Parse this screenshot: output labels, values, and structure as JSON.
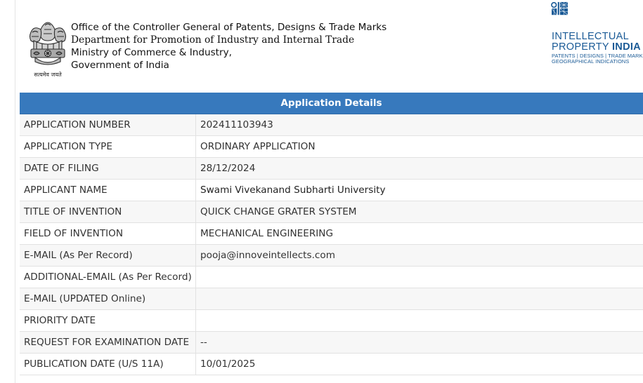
{
  "header": {
    "emblem_motto": "सत्यमेव जयते",
    "office_lines": [
      "Office of the Controller General of Patents, Designs & Trade Marks",
      "Department for Promotion of Industry and Internal Trade",
      "Ministry of Commerce & Industry,",
      "Government of India"
    ],
    "logo": {
      "line1": "INTELLECTUAL",
      "line2_plain": "PROPERTY ",
      "line2_bold": "INDIA",
      "line3": "PATENTS | DESIGNS | TRADE MARKS",
      "line4": "GEOGRAPHICAL INDICATIONS",
      "color": "#1a5a96"
    }
  },
  "table": {
    "title": "Application Details",
    "header_color": "#3779bd",
    "rows": [
      {
        "label": "APPLICATION NUMBER",
        "value": "202411103943"
      },
      {
        "label": "APPLICATION TYPE",
        "value": "ORDINARY APPLICATION"
      },
      {
        "label": "DATE OF FILING",
        "value": "28/12/2024"
      },
      {
        "label": "APPLICANT NAME",
        "value": "Swami Vivekanand Subharti University"
      },
      {
        "label": "TITLE OF INVENTION",
        "value": "QUICK CHANGE GRATER SYSTEM"
      },
      {
        "label": "FIELD OF INVENTION",
        "value": "MECHANICAL ENGINEERING"
      },
      {
        "label": "E-MAIL (As Per Record)",
        "value": "pooja@innoveintellects.com"
      },
      {
        "label": "ADDITIONAL-EMAIL (As Per Record)",
        "value": ""
      },
      {
        "label": "E-MAIL (UPDATED Online)",
        "value": ""
      },
      {
        "label": "PRIORITY DATE",
        "value": ""
      },
      {
        "label": "REQUEST FOR EXAMINATION DATE",
        "value": "--"
      },
      {
        "label": "PUBLICATION DATE (U/S 11A)",
        "value": "10/01/2025"
      }
    ]
  }
}
